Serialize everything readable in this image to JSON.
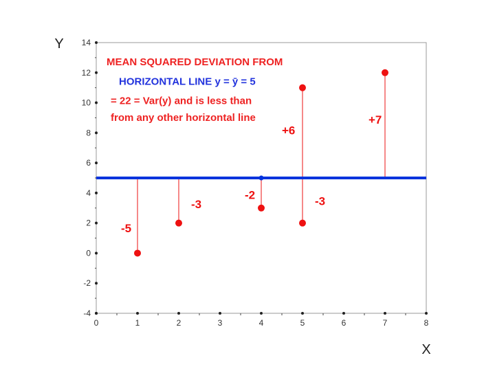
{
  "chart_data": {
    "type": "scatter",
    "xlabel": "X",
    "ylabel": "Y",
    "xlim": [
      0,
      8
    ],
    "ylim": [
      -4,
      14
    ],
    "x_ticks": [
      0,
      1,
      2,
      3,
      4,
      5,
      6,
      7,
      8
    ],
    "y_ticks": [
      -4,
      -2,
      0,
      2,
      4,
      6,
      8,
      10,
      12,
      14
    ],
    "grid": false,
    "horizontal_line": {
      "y": 5,
      "color": "#0033dd"
    },
    "points": [
      {
        "x": 1,
        "y": 0
      },
      {
        "x": 2,
        "y": 2
      },
      {
        "x": 4,
        "y": 3
      },
      {
        "x": 5,
        "y": 11
      },
      {
        "x": 5,
        "y": 2
      },
      {
        "x": 7,
        "y": 12
      }
    ],
    "mean_point": {
      "x": 4,
      "y": 5
    },
    "deviation_labels": [
      {
        "text": "-5",
        "x": 0.6,
        "y": 1.4
      },
      {
        "text": "-3",
        "x": 2.3,
        "y": 3.0
      },
      {
        "text": "-2",
        "x": 3.6,
        "y": 3.6
      },
      {
        "text": "-3",
        "x": 5.3,
        "y": 3.2
      },
      {
        "text": "+6",
        "x": 4.5,
        "y": 7.9
      },
      {
        "text": "+7",
        "x": 6.6,
        "y": 8.6
      }
    ],
    "point_color": "#ee1111",
    "annotations": [
      {
        "text": "MEAN SQUARED DEVIATION FROM",
        "x": 0.25,
        "y": 12.5,
        "color": "#ee2222"
      },
      {
        "text": "HORIZONTAL LINE  y = ȳ = 5",
        "x": 0.55,
        "y": 11.2,
        "color": "#2233dd"
      },
      {
        "text": "= 22 = Var(y) and is less than",
        "x": 0.35,
        "y": 9.9,
        "color": "#ee2222"
      },
      {
        "text": "from any other horizontal line",
        "x": 0.35,
        "y": 8.8,
        "color": "#ee2222"
      }
    ]
  }
}
